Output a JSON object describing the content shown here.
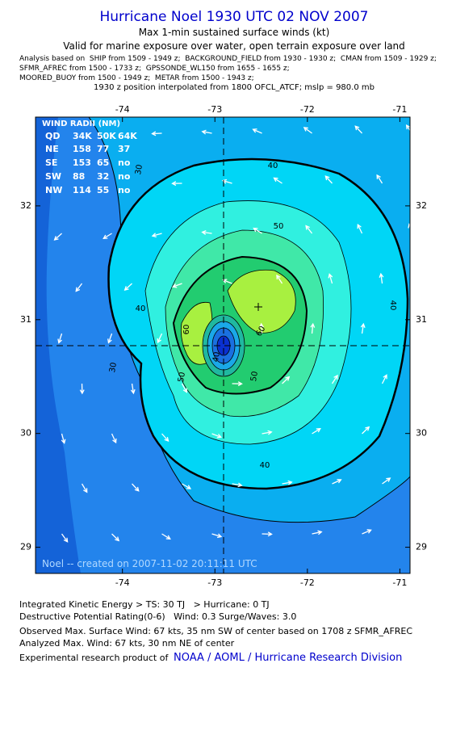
{
  "header": {
    "title": "Hurricane Noel 1930 UTC 02 NOV 2007",
    "subtitle": "Max 1-min sustained surface winds (kt)",
    "valid": "Valid for marine exposure over water, open terrain exposure over land",
    "analysis": [
      "Analysis based on  SHIP from 1509 - 1949 z;  BACKGROUND_FIELD from 1930 - 1930 z;  CMAN from 1509 - 1929 z;",
      "SFMR_AFREC from 1500 - 1733 z;  GPSSONDE_WL150 from 1655 - 1655 z;",
      "MOORED_BUOY from 1500 - 1949 z;  METAR from 1500 - 1943 z;"
    ],
    "position": "1930 z position interpolated from 1800 OFCL_ATCF; mslp = 980.0 mb"
  },
  "map": {
    "xlim": [
      -74.94,
      -70.89
    ],
    "ylim": [
      28.77,
      32.78
    ],
    "xticks": [
      -74,
      -73,
      -72,
      -71
    ],
    "yticks": [
      29,
      30,
      31,
      32
    ],
    "wind_radii": {
      "title": "WIND RADII (NM)",
      "columns": [
        "QD",
        "34K",
        "50K",
        "64K"
      ],
      "rows": [
        [
          "NE",
          158,
          77,
          37
        ],
        [
          "SE",
          153,
          65,
          "no"
        ],
        [
          "SW",
          88,
          32,
          "no"
        ],
        [
          "NW",
          114,
          55,
          "no"
        ]
      ]
    },
    "contour_labels": [
      "30",
      "40",
      "50",
      "40",
      "60",
      "60",
      "50",
      "40",
      "30",
      "40",
      "40",
      "50"
    ],
    "credit": "Noel -- created on 2007-11-02 20:11:11 UTC"
  },
  "footer": {
    "lines": [
      "Integrated Kinetic Energy > TS: 30 TJ   > Hurricane: 0 TJ",
      "Destructive Potential Rating(0-6)   Wind: 0.3 Surge/Waves: 3.0",
      "Observed Max. Surface Wind: 67 kts, 35 nm SW of center based on 1708 z SFMR_AFREC",
      "Analyzed Max. Wind: 67 kts, 30 nm NE of center"
    ],
    "product": "Experimental research product of",
    "link": "NOAA / AOML / Hurricane Research Division"
  }
}
